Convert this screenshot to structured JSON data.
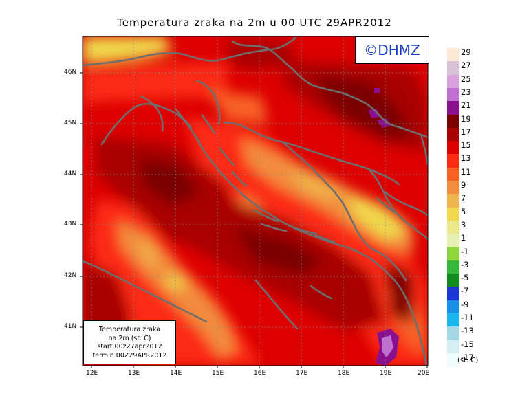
{
  "title": "Temperatura zraka na 2m u 00 UTC 29APR2012",
  "logo": "©DHMZ",
  "info_box": [
    "Temperatura zraka",
    "na 2m (st. C)",
    "start 00z27apr2012",
    "termin 00Z29APR2012"
  ],
  "units_label": "(st. C)",
  "legend": {
    "labels": [
      "29",
      "27",
      "25",
      "23",
      "21",
      "19",
      "17",
      "15",
      "13",
      "11",
      "9",
      "7",
      "5",
      "3",
      "1",
      "-1",
      "-3",
      "-5",
      "-7",
      "-9",
      "-11",
      "-13",
      "-15",
      "-17"
    ],
    "colors": [
      "#fde8d6",
      "#d8c2d8",
      "#d8a2da",
      "#c070d0",
      "#8a1090",
      "#7a0000",
      "#a80000",
      "#dd0000",
      "#fb2a12",
      "#f86025",
      "#f28c3e",
      "#f0b54c",
      "#f0d84c",
      "#ebe88c",
      "#e6f0b0",
      "#8ed63a",
      "#38b83a",
      "#128c1e",
      "#1c36d8",
      "#1690e6",
      "#18b8ec",
      "#a4d6e4",
      "#d4eef2",
      "#eefcfc"
    ]
  },
  "axes": {
    "x_ticks": [
      "12E",
      "13E",
      "14E",
      "15E",
      "16E",
      "17E",
      "18E",
      "19E",
      "20E"
    ],
    "y_ticks": [
      "41N",
      "42N",
      "43N",
      "44N",
      "45N",
      "46N"
    ]
  }
}
